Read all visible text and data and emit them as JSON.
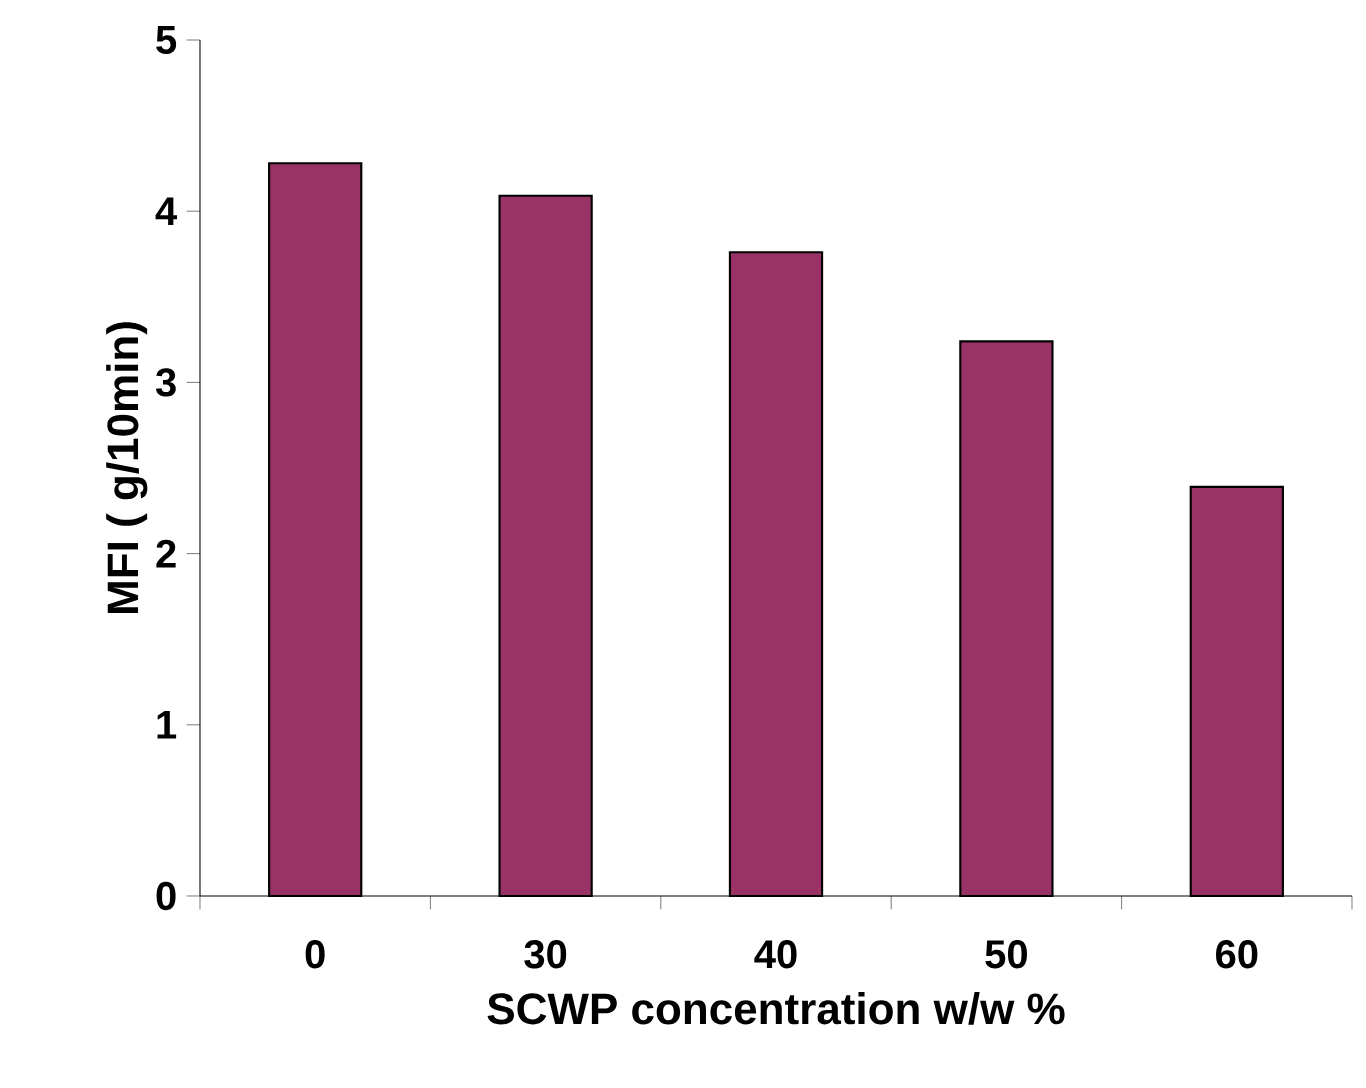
{
  "chart_data": {
    "type": "bar",
    "xlabel": "SCWP concentration w/w %",
    "ylabel": "MFI ( g/10min)",
    "categories": [
      "0",
      "30",
      "40",
      "50",
      "60"
    ],
    "values": [
      4.28,
      4.09,
      3.76,
      3.24,
      2.39
    ],
    "color": "#993366",
    "ylim": [
      0,
      5
    ],
    "yticks": [
      0,
      1,
      2,
      3,
      4,
      5
    ],
    "grid": false
  }
}
